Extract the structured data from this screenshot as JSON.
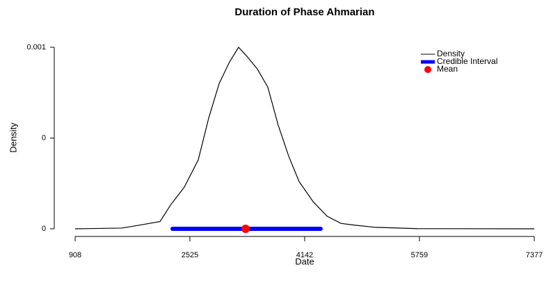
{
  "chart_data": {
    "type": "line",
    "title": "Duration of Phase Ahmarian",
    "xlabel": "Date",
    "ylabel": "Density",
    "x": [
      908,
      1565,
      1810,
      2104,
      2251,
      2447,
      2643,
      2790,
      2937,
      3084,
      3211,
      3329,
      3476,
      3623,
      3770,
      3917,
      4064,
      4260,
      4456,
      4652,
      4848,
      5142,
      5730,
      7377
    ],
    "series": [
      {
        "name": "Density",
        "color": "#000000",
        "values": [
          0,
          4e-06,
          2e-05,
          4e-05,
          0.00013,
          0.00023,
          0.00038,
          0.00061,
          0.0008,
          0.00092,
          0.001,
          0.00095,
          0.00088,
          0.00078,
          0.00057,
          0.0004,
          0.00026,
          0.00015,
          7e-05,
          3e-05,
          2e-05,
          8e-06,
          1e-06,
          0
        ]
      }
    ],
    "interval": {
      "name": "Credible Interval",
      "color": "#0000ff",
      "values": [
        2280,
        4367
      ]
    },
    "mean": {
      "name": "Mean",
      "color": "#ff0000",
      "value": 3309
    },
    "xlim": [
      908,
      7377
    ],
    "xticks": [
      908,
      2525,
      4142,
      5759,
      7377
    ],
    "ylim": [
      0,
      0.001
    ],
    "yticks": [
      0,
      {
        "value": 0.0005,
        "label": "0"
      },
      0.001
    ],
    "legend": "top-right"
  }
}
